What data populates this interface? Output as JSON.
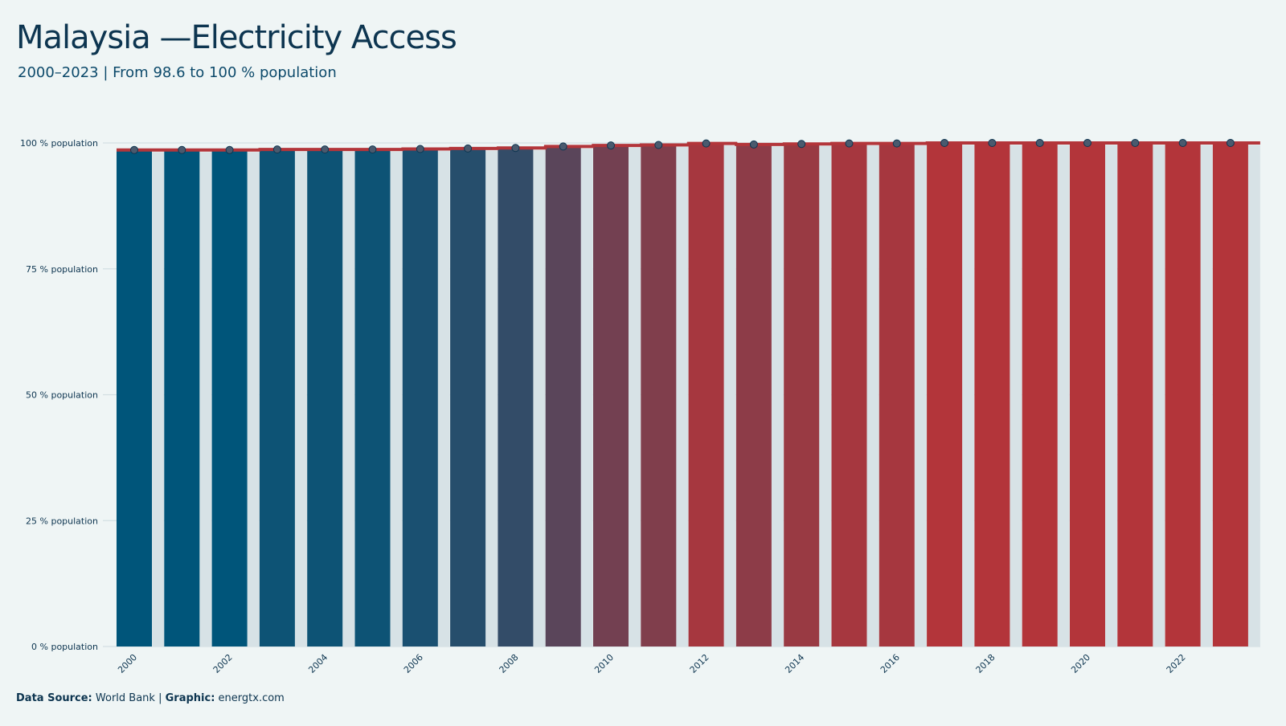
{
  "header": {
    "title": "Malaysia —Electricity Access",
    "subtitle": "2000–2023 | From 98.6 to 100 % population"
  },
  "footer": {
    "source_label": "Data Source:",
    "source_value": "World Bank",
    "separator": "|",
    "graphic_label": "Graphic:",
    "graphic_value": "energtx.com"
  },
  "colors": {
    "background": "#eff5f5",
    "grid": "#d3dfe3",
    "low": "#00557a",
    "high": "#b3353a",
    "shadow_bar": "#d7e2e6",
    "marker_fill": "#4a5a6e",
    "marker_stroke": "#0d3550"
  },
  "chart_data": {
    "type": "bar",
    "categories": [
      "2000",
      "2001",
      "2002",
      "2003",
      "2004",
      "2005",
      "2006",
      "2007",
      "2008",
      "2009",
      "2010",
      "2011",
      "2012",
      "2013",
      "2014",
      "2015",
      "2016",
      "2017",
      "2018",
      "2019",
      "2020",
      "2021",
      "2022",
      "2023"
    ],
    "values": [
      98.6,
      98.6,
      98.6,
      98.7,
      98.7,
      98.7,
      98.8,
      98.9,
      99.0,
      99.3,
      99.5,
      99.6,
      99.9,
      99.7,
      99.8,
      99.9,
      99.9,
      100,
      100,
      100,
      100,
      100,
      100,
      100
    ],
    "x_tick_labels": [
      "2000",
      "2002",
      "2004",
      "2006",
      "2008",
      "2010",
      "2012",
      "2014",
      "2016",
      "2018",
      "2020",
      "2022"
    ],
    "y_ticks": [
      0,
      25,
      50,
      75,
      100
    ],
    "y_tick_suffix": " % population",
    "ylim": [
      0,
      100
    ],
    "grid": true,
    "legend": false,
    "title": "Malaysia —Electricity Access",
    "xlabel": "",
    "ylabel": ""
  }
}
